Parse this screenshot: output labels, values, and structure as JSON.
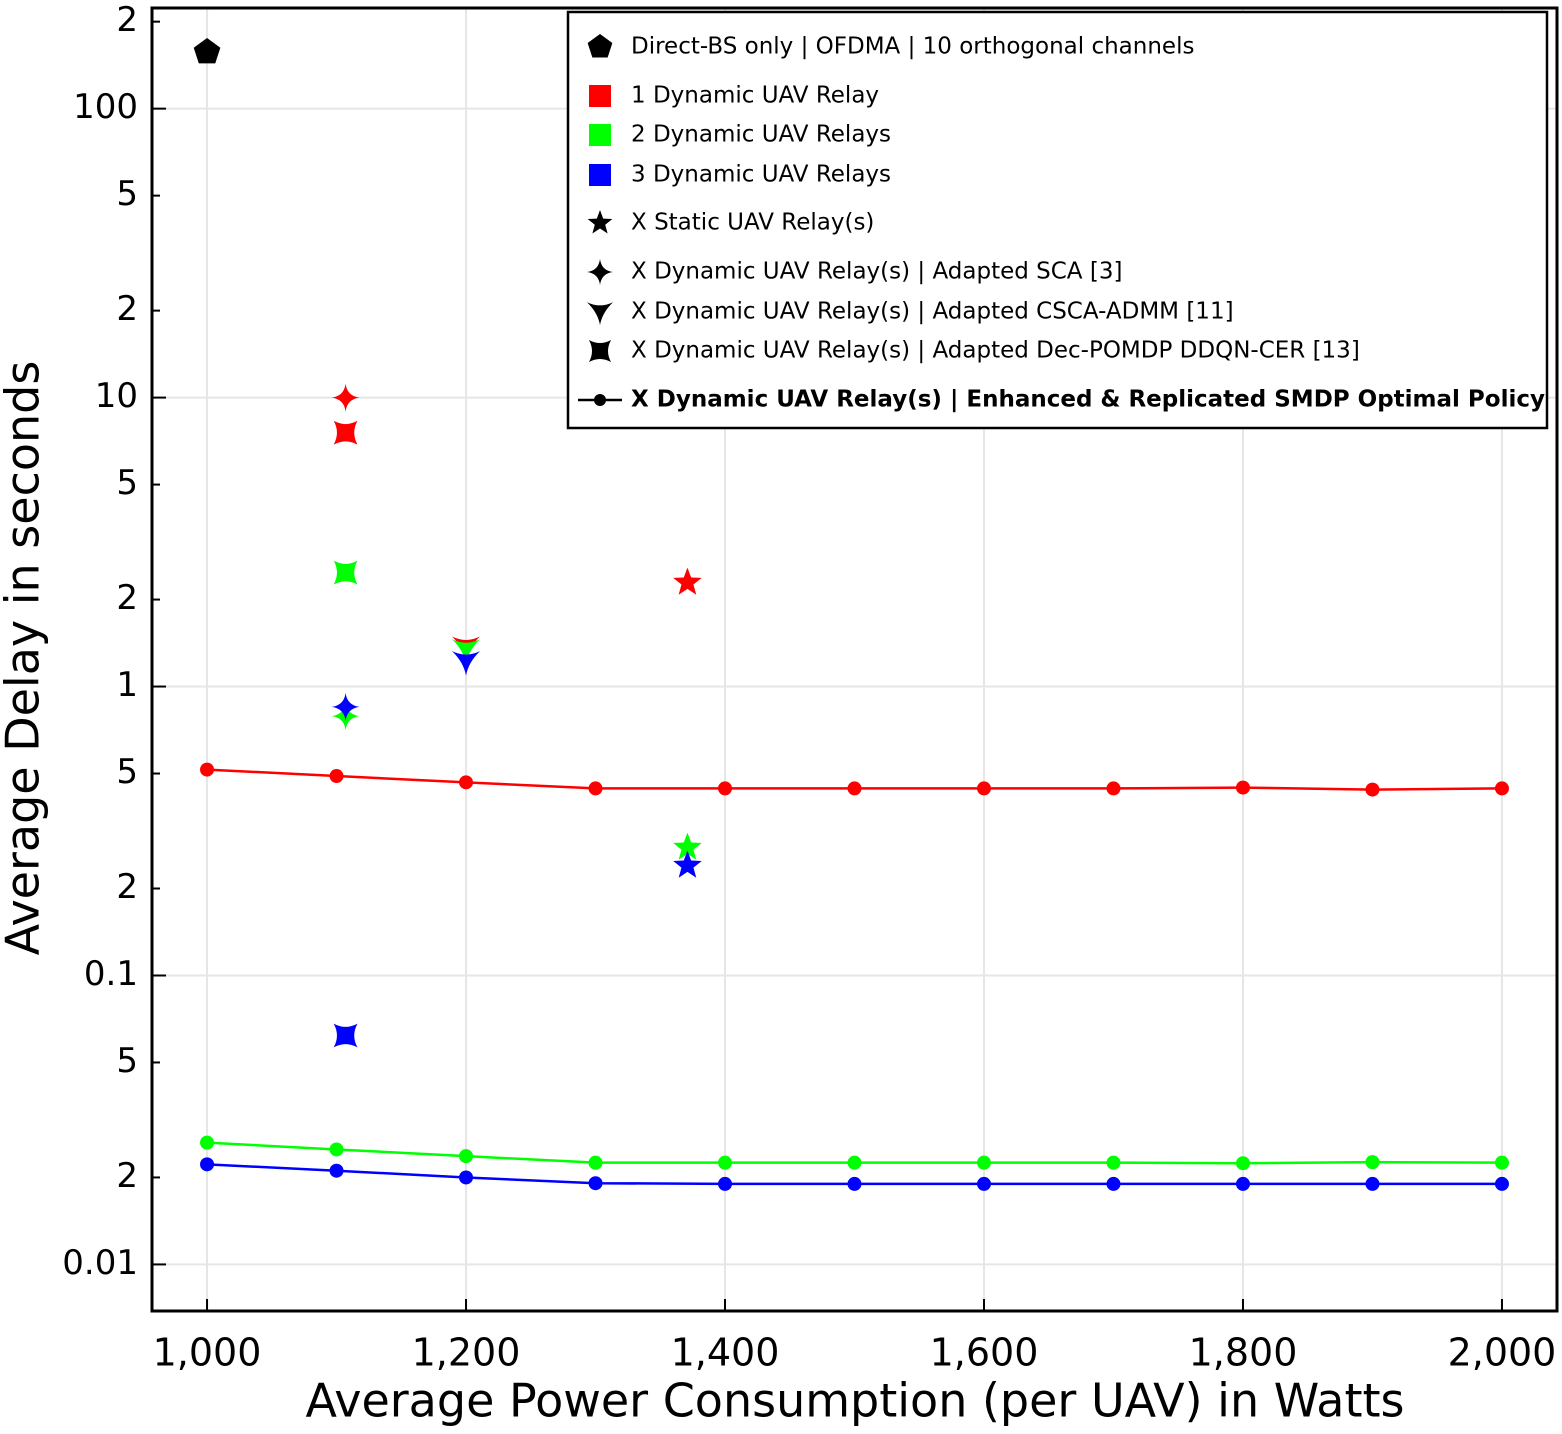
{
  "chart_data": {
    "type": "scatter",
    "x_label": "Average Power Consumption (per UAV) in Watts",
    "y_label": "Average Delay in seconds",
    "log_y": true,
    "grid": true,
    "xlim": [
      957.5,
      2042.5
    ],
    "ylim": [
      0.0069,
      223
    ],
    "xticks": [
      {
        "value": 1000,
        "label": "1,000"
      },
      {
        "value": 1200,
        "label": "1,200"
      },
      {
        "value": 1400,
        "label": "1,400"
      },
      {
        "value": 1600,
        "label": "1,600"
      },
      {
        "value": 1800,
        "label": "1,800"
      },
      {
        "value": 2000,
        "label": "2,000"
      }
    ],
    "yticks": [
      0.01,
      {
        "value": 0.02,
        "label": "2"
      },
      {
        "value": 0.05,
        "label": "5"
      },
      0.1,
      {
        "value": 0.2,
        "label": "2"
      },
      {
        "value": 0.5,
        "label": "5"
      },
      1,
      2,
      5,
      10,
      {
        "value": 20,
        "label": "2"
      },
      {
        "value": 50,
        "label": "5"
      },
      100,
      {
        "value": 200,
        "label": "2"
      }
    ],
    "legend_position": "upper right",
    "legend": [
      {
        "label": "Direct-BS only | OFDMA | 10 orthogonal channels",
        "marker": "pentagon",
        "color": "#000000"
      },
      {
        "label": "1 Dynamic UAV Relay",
        "marker": "square",
        "color": "#ff0000"
      },
      {
        "label": "2 Dynamic UAV Relays",
        "marker": "square",
        "color": "#00ff00"
      },
      {
        "label": "3 Dynamic UAV Relays",
        "marker": "square",
        "color": "#0000ff"
      },
      {
        "label": "X Static UAV Relay(s)",
        "marker": "star",
        "color": "#000000"
      },
      {
        "label": "X Dynamic UAV Relay(s) | Adapted SCA [3]",
        "marker": "star4",
        "color": "#000000"
      },
      {
        "label": "X Dynamic UAV Relay(s) | Adapted CSCA-ADMM [11]",
        "marker": "vtri",
        "color": "#000000"
      },
      {
        "label": "X Dynamic UAV Relay(s) | Adapted Dec-POMDP DDQN-CER [13]",
        "marker": "csquare",
        "color": "#000000"
      },
      {
        "label": "X Dynamic UAV Relay(s) | Enhanced & Replicated SMDP Optimal Policy",
        "marker": "line",
        "color": "#000000",
        "bold": true
      }
    ],
    "series": [
      {
        "color": "#000000",
        "marker": "pentagon",
        "x": [
          1000
        ],
        "values": [
          157
        ]
      },
      {
        "color": "#ff0000",
        "marker": "star4",
        "x": [
          1107
        ],
        "values": [
          10
        ]
      },
      {
        "color": "#00ff00",
        "marker": "star4",
        "x": [
          1107
        ],
        "values": [
          0.79
        ]
      },
      {
        "color": "#0000ff",
        "marker": "star4",
        "x": [
          1107
        ],
        "values": [
          0.85
        ]
      },
      {
        "color": "#ff0000",
        "marker": "csquare",
        "x": [
          1107
        ],
        "values": [
          7.56
        ]
      },
      {
        "color": "#00ff00",
        "marker": "csquare",
        "x": [
          1107
        ],
        "values": [
          2.48
        ]
      },
      {
        "color": "#0000ff",
        "marker": "csquare",
        "x": [
          1107
        ],
        "values": [
          0.062
        ]
      },
      {
        "color": "#ff0000",
        "marker": "vtri",
        "x": [
          1200
        ],
        "values": [
          1.37
        ]
      },
      {
        "color": "#00ff00",
        "marker": "vtri",
        "x": [
          1200
        ],
        "values": [
          1.34
        ]
      },
      {
        "color": "#0000ff",
        "marker": "vtri",
        "x": [
          1200
        ],
        "values": [
          1.22
        ]
      },
      {
        "color": "#ff0000",
        "marker": "star",
        "x": [
          1371
        ],
        "values": [
          2.29
        ]
      },
      {
        "color": "#00ff00",
        "marker": "star",
        "x": [
          1371
        ],
        "values": [
          0.277
        ]
      },
      {
        "color": "#0000ff",
        "marker": "star",
        "x": [
          1371
        ],
        "values": [
          0.24
        ]
      },
      {
        "color": "#ff0000",
        "marker": "line",
        "x": [
          1000,
          1100,
          1200,
          1300,
          1400,
          1500,
          1600,
          1700,
          1800,
          1900,
          2000
        ],
        "values": [
          0.516,
          0.49,
          0.466,
          0.444,
          0.444,
          0.444,
          0.444,
          0.444,
          0.447,
          0.44,
          0.444
        ]
      },
      {
        "color": "#00ff00",
        "marker": "line",
        "x": [
          1000,
          1100,
          1200,
          1300,
          1400,
          1500,
          1600,
          1700,
          1800,
          1900,
          2000
        ],
        "values": [
          0.0264,
          0.025,
          0.0237,
          0.0225,
          0.0225,
          0.0225,
          0.0225,
          0.0225,
          0.0224,
          0.0226,
          0.0225
        ]
      },
      {
        "color": "#0000ff",
        "marker": "line",
        "x": [
          1000,
          1100,
          1200,
          1300,
          1400,
          1500,
          1600,
          1700,
          1800,
          1900,
          2000
        ],
        "values": [
          0.0222,
          0.0211,
          0.02,
          0.0191,
          0.019,
          0.019,
          0.019,
          0.019,
          0.019,
          0.019,
          0.019
        ]
      }
    ]
  }
}
